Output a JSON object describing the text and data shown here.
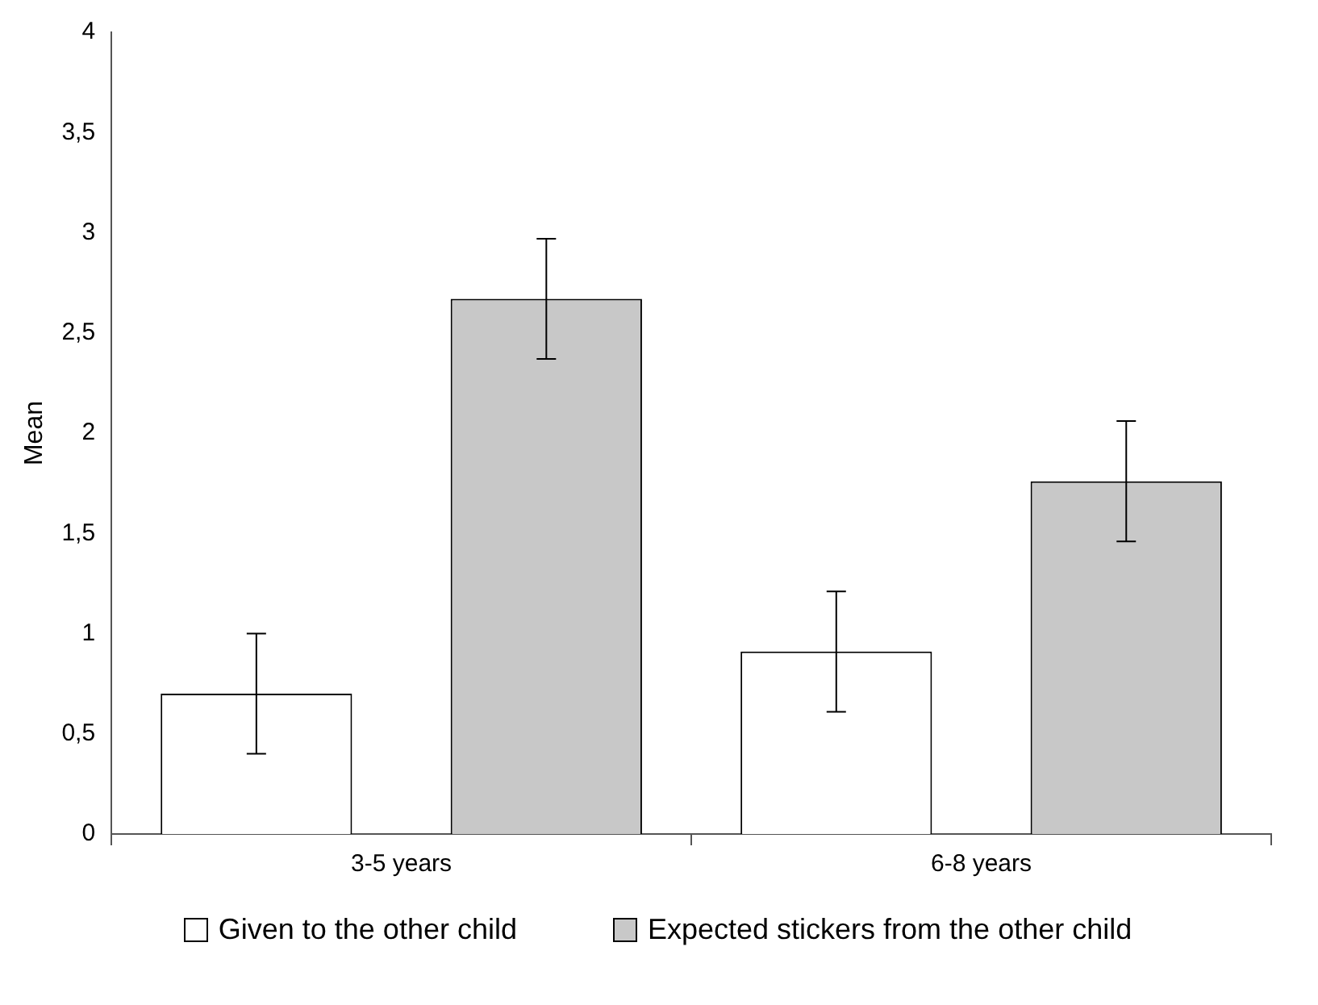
{
  "chart_data": {
    "type": "bar",
    "ylabel": "Mean",
    "categories": [
      "3-5 years",
      "6-8 years"
    ],
    "series": [
      {
        "name": "Given to the other child",
        "color": "#ffffff",
        "values": [
          0.7,
          0.91
        ],
        "errors": [
          0.3,
          0.3
        ]
      },
      {
        "name": "Expected stickers from the other child",
        "color": "#c8c8c8",
        "values": [
          2.67,
          1.76
        ],
        "errors": [
          0.3,
          0.3
        ]
      }
    ],
    "ylim": [
      0,
      4
    ],
    "yticks": [
      0,
      {
        "value": 0.5,
        "label": "0,5"
      },
      1,
      {
        "value": 1.5,
        "label": "1,5"
      },
      2,
      {
        "value": 2.5,
        "label": "2,5"
      },
      3,
      {
        "value": 3.5,
        "label": "3,5"
      },
      4
    ],
    "legend": "bottom"
  }
}
